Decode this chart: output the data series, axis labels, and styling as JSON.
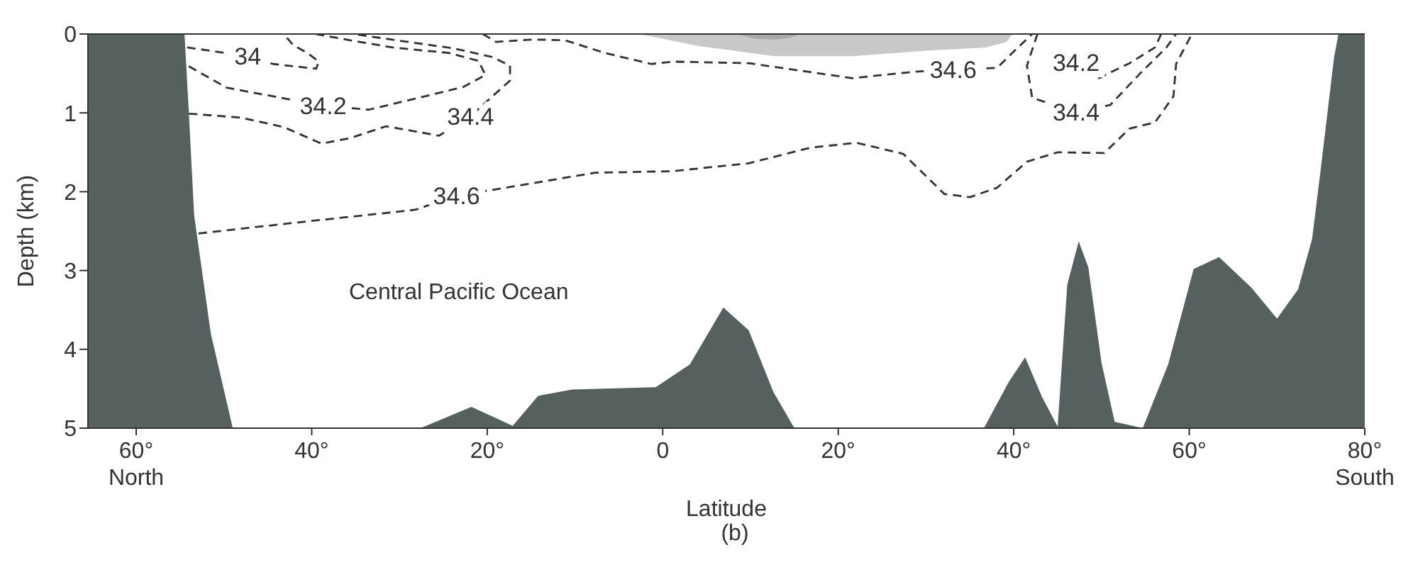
{
  "chart_data": {
    "type": "line",
    "xlabel": "Latitude",
    "ylabel": "Depth (km)",
    "xlim": [
      -65.5,
      80
    ],
    "ylim": [
      5,
      0
    ],
    "xticks": [
      {
        "value": -60,
        "label": "60°\nNorth"
      },
      {
        "value": -40,
        "label": "40°"
      },
      {
        "value": -20,
        "label": "20°"
      },
      {
        "value": 0,
        "label": "0"
      },
      {
        "value": 20,
        "label": "20°"
      },
      {
        "value": 40,
        "label": "40°"
      },
      {
        "value": 60,
        "label": "60°"
      },
      {
        "value": 80,
        "label": "80°\nSouth"
      }
    ],
    "yticks": [
      0,
      1,
      2,
      3,
      4,
      5
    ],
    "line_style": "dashed",
    "series": [
      {
        "type": "area",
        "color": "#56605f",
        "x": [
          -65.5,
          -65.5,
          -54.5,
          -54,
          -53.4,
          -51.5,
          -49,
          -27.6,
          -21.8,
          -17.1,
          -14.2,
          -10.3,
          -0.8,
          3.1,
          6.9,
          9.8,
          12.6,
          15,
          36.6,
          39.4,
          41.3,
          43.2,
          45,
          46.1,
          47.4,
          48.5,
          50,
          51.5,
          54.7,
          57.6,
          60.5,
          63.4,
          67.1,
          70,
          72.4,
          74,
          75,
          76.5,
          77,
          80,
          80
        ],
        "values": [
          5,
          0,
          0,
          1,
          2.3,
          3.8,
          5,
          5,
          4.73,
          4.97,
          4.59,
          4.51,
          4.48,
          4.19,
          3.47,
          3.76,
          4.54,
          5,
          5,
          4.42,
          4.1,
          4.6,
          4.98,
          3.18,
          2.63,
          2.96,
          4.17,
          4.92,
          5,
          4.19,
          2.98,
          2.83,
          3.22,
          3.61,
          3.24,
          2.6,
          1.7,
          0.3,
          0,
          0,
          5
        ]
      },
      {
        "type": "area",
        "color": "#c8c8c8",
        "x": [
          -2.7,
          4,
          12.7,
          21.6,
          30.3,
          36.8,
          39.2,
          39.8
        ],
        "values": [
          0,
          0.15,
          0.28,
          0.28,
          0.21,
          0.17,
          0.1,
          0
        ]
      },
      {
        "type": "area",
        "color": "#a9a9a9",
        "x": [
          8.4,
          10.5,
          12.7,
          14.5,
          15.6
        ],
        "values": [
          0,
          0.06,
          0.07,
          0.05,
          0
        ]
      },
      {
        "color": "#333333",
        "x": [
          -54.2,
          -47.3,
          -44.4,
          -39.5,
          -39.2,
          -40.5,
          -42.1,
          -43.2
        ],
        "values": [
          0.17,
          0.28,
          0.38,
          0.44,
          0.35,
          0.24,
          0.14,
          0
        ]
      },
      {
        "color": "#333333",
        "x": [
          -54,
          -49.7,
          -38.7,
          -33.5,
          -28.2,
          -22.7,
          -20.2,
          -21,
          -24.4,
          -30.8,
          -35.6,
          -39.5
        ],
        "values": [
          0.41,
          0.68,
          0.91,
          0.96,
          0.82,
          0.67,
          0.52,
          0.34,
          0.24,
          0.17,
          0.08,
          0
        ]
      },
      {
        "color": "#333333",
        "x": [
          -54,
          -48.1,
          -43.2,
          -38.9,
          -35.6,
          -31.5,
          -25.5,
          -21.9,
          -17.4,
          -17.4,
          -19.5,
          -23.9,
          -30.3,
          -35.2
        ],
        "values": [
          1.01,
          1.06,
          1.18,
          1.39,
          1.32,
          1.17,
          1.29,
          1.04,
          0.59,
          0.4,
          0.29,
          0.18,
          0.08,
          0
        ]
      },
      {
        "color": "#333333",
        "x": [
          -20.5,
          -19,
          -14.7,
          -11.1,
          -6.6,
          -1.3,
          1.1,
          9.8,
          21.6,
          28.5,
          33.1,
          38.1,
          40.3,
          42.1
        ],
        "values": [
          0,
          0.1,
          0.07,
          0.08,
          0.24,
          0.38,
          0.35,
          0.37,
          0.56,
          0.48,
          0.45,
          0.43,
          0.19,
          0
        ]
      },
      {
        "color": "#333333",
        "x": [
          -52.9,
          -41.6,
          -28.2,
          -23.5,
          -19,
          -7.7,
          1.1,
          9.8,
          16.9,
          22.1,
          27.4,
          32.1,
          35,
          38.1,
          41.5,
          45,
          50.3,
          53.2,
          56.1,
          58.2,
          58.5,
          60.3
        ],
        "values": [
          2.53,
          2.39,
          2.23,
          2.05,
          1.97,
          1.76,
          1.74,
          1.64,
          1.44,
          1.38,
          1.52,
          2.03,
          2.07,
          1.95,
          1.62,
          1.5,
          1.51,
          1.2,
          1.12,
          0.79,
          0.38,
          0
        ]
      },
      {
        "color": "#333333",
        "x": [
          56.8,
          56.1,
          53.2,
          49.7,
          47.1
        ],
        "values": [
          0,
          0.17,
          0.37,
          0.56,
          0.36
        ]
      },
      {
        "color": "#333333",
        "x": [
          42.7,
          41.5,
          42.1,
          47.1,
          51,
          54.4,
          57.4,
          58.5
        ],
        "values": [
          0,
          0.4,
          0.81,
          0.99,
          0.9,
          0.5,
          0.17,
          0
        ]
      }
    ],
    "annotations": [
      "Central Pacific Ocean",
      "(b)",
      {
        "text": "34",
        "x": -47.3,
        "y": 0.28
      },
      {
        "text": "34.2",
        "x": -38.7,
        "y": 0.91
      },
      {
        "text": "34.4",
        "x": -21.9,
        "y": 1.04
      },
      {
        "text": "34.6",
        "x": -23.5,
        "y": 2.05
      },
      {
        "text": "34.6",
        "x": 33.1,
        "y": 0.45
      },
      {
        "text": "34.2",
        "x": 47.1,
        "y": 0.36
      },
      {
        "text": "34.4",
        "x": 47.1,
        "y": 0.99
      }
    ]
  }
}
